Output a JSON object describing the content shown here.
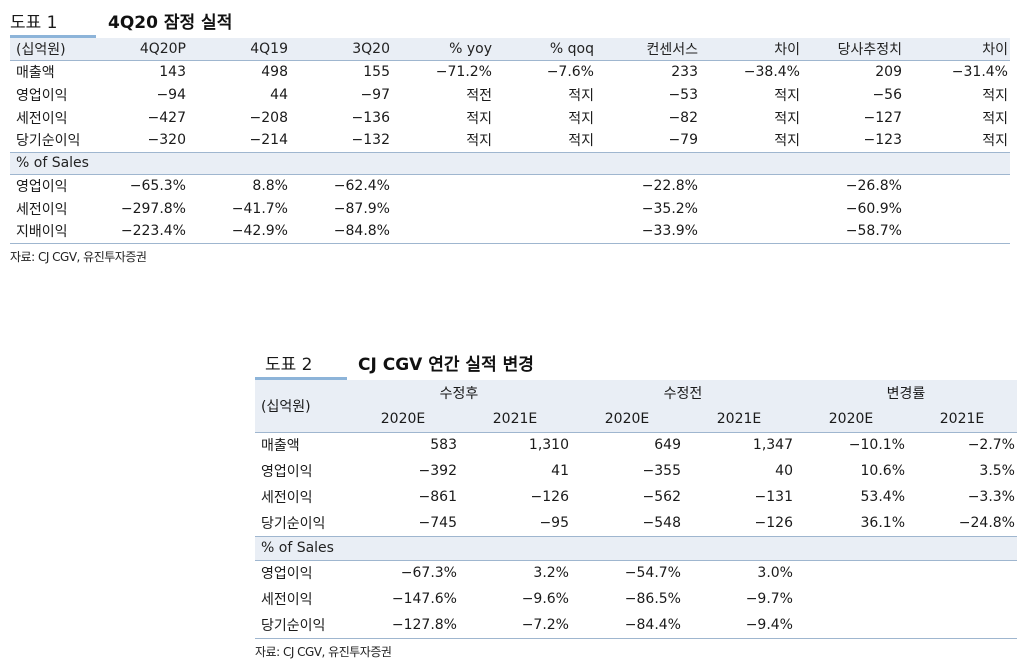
{
  "table1": {
    "label": "도표 1",
    "title": "4Q20 잠정 실적",
    "headers": [
      "(십억원)",
      "4Q20P",
      "4Q19",
      "3Q20",
      "% yoy",
      "% qoq",
      "컨센서스",
      "차이",
      "당사추정치",
      "차이"
    ],
    "rows": [
      {
        "label": "매출액",
        "values": [
          "143",
          "498",
          "155",
          "−71.2%",
          "−7.6%",
          "233",
          "−38.4%",
          "209",
          "−31.4%"
        ]
      },
      {
        "label": "영업이익",
        "values": [
          "−94",
          "44",
          "−97",
          "적전",
          "적지",
          "−53",
          "적지",
          "−56",
          "적지"
        ]
      },
      {
        "label": "세전이익",
        "values": [
          "−427",
          "−208",
          "−136",
          "적지",
          "적지",
          "−82",
          "적지",
          "−127",
          "적지"
        ]
      },
      {
        "label": "당기순이익",
        "values": [
          "−320",
          "−214",
          "−132",
          "적지",
          "적지",
          "−79",
          "적지",
          "−123",
          "적지"
        ]
      }
    ],
    "section_label": "% of Sales",
    "ratio_rows": [
      {
        "label": "영업이익",
        "values": [
          "−65.3%",
          "8.8%",
          "−62.4%",
          "",
          "",
          "−22.8%",
          "",
          "−26.8%",
          ""
        ]
      },
      {
        "label": "세전이익",
        "values": [
          "−297.8%",
          "−41.7%",
          "−87.9%",
          "",
          "",
          "−35.2%",
          "",
          "−60.9%",
          ""
        ]
      },
      {
        "label": "지배이익",
        "values": [
          "−223.4%",
          "−42.9%",
          "−84.8%",
          "",
          "",
          "−33.9%",
          "",
          "−58.7%",
          ""
        ]
      }
    ],
    "source": "자료: CJ CGV, 유진투자증권"
  },
  "table2": {
    "label": "도표 2",
    "title": "CJ CGV 연간 실적 변경",
    "unit": "(십억원)",
    "groups": [
      "수정후",
      "수정전",
      "변경률"
    ],
    "years": [
      "2020E",
      "2021E",
      "2020E",
      "2021E",
      "2020E",
      "2021E"
    ],
    "rows": [
      {
        "label": "매출액",
        "values": [
          "583",
          "1,310",
          "649",
          "1,347",
          "−10.1%",
          "−2.7%"
        ]
      },
      {
        "label": "영업이익",
        "values": [
          "−392",
          "41",
          "−355",
          "40",
          "10.6%",
          "3.5%"
        ]
      },
      {
        "label": "세전이익",
        "values": [
          "−861",
          "−126",
          "−562",
          "−131",
          "53.4%",
          "−3.3%"
        ]
      },
      {
        "label": "당기순이익",
        "values": [
          "−745",
          "−95",
          "−548",
          "−126",
          "36.1%",
          "−24.8%"
        ]
      }
    ],
    "section_label": "% of Sales",
    "ratio_rows": [
      {
        "label": "영업이익",
        "values": [
          "−67.3%",
          "3.2%",
          "−54.7%",
          "3.0%",
          "",
          ""
        ]
      },
      {
        "label": "세전이익",
        "values": [
          "−147.6%",
          "−9.6%",
          "−86.5%",
          "−9.7%",
          "",
          ""
        ]
      },
      {
        "label": "당기순이익",
        "values": [
          "−127.8%",
          "−7.2%",
          "−84.4%",
          "−9.4%",
          "",
          ""
        ]
      }
    ],
    "source": "자료: CJ CGV, 유진투자증권"
  }
}
